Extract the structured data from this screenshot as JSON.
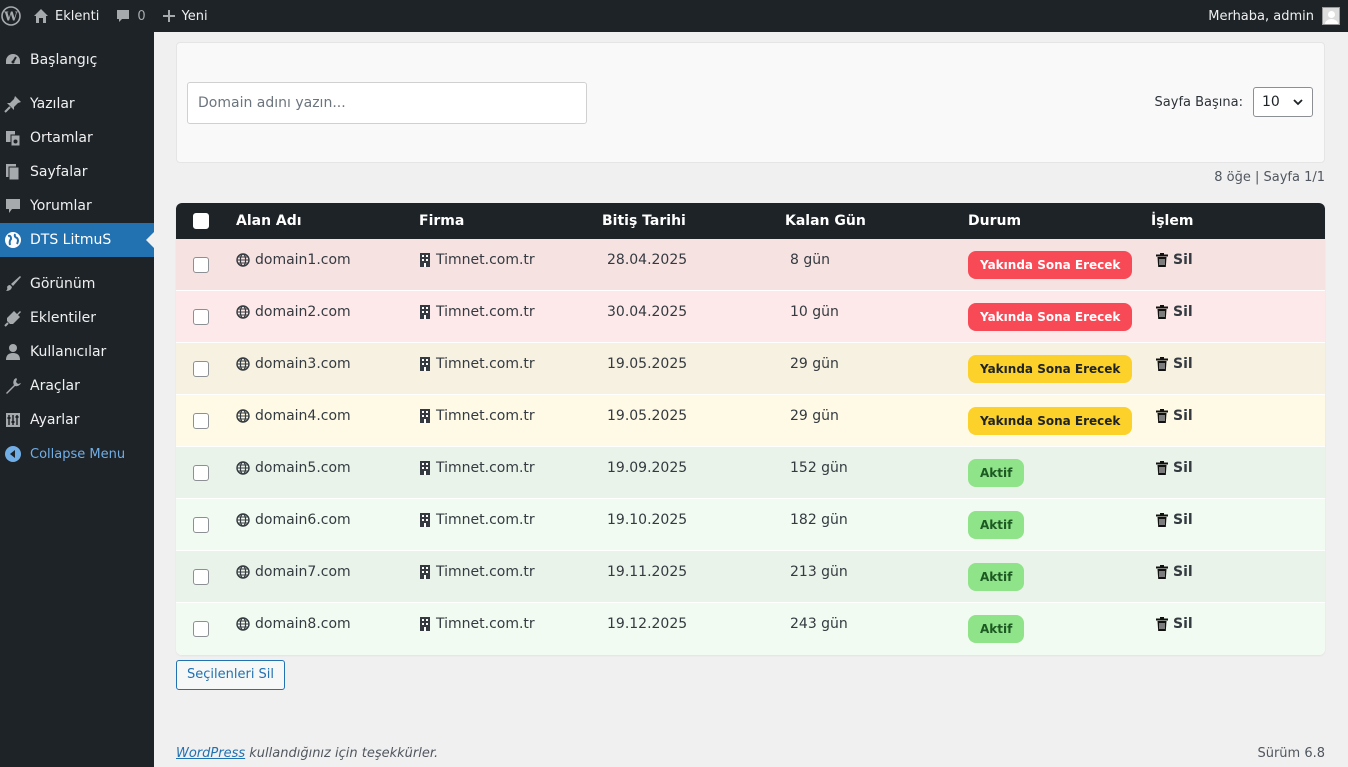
{
  "adminbar": {
    "site_name": "Eklenti",
    "comment_count": "0",
    "new_label": "Yeni",
    "greeting": "Merhaba, admin"
  },
  "sidebar": {
    "items": [
      {
        "label": "Başlangıç",
        "icon": "dashboard-icon"
      },
      {
        "label": "Yazılar",
        "icon": "pin-icon"
      },
      {
        "label": "Ortamlar",
        "icon": "media-icon"
      },
      {
        "label": "Sayfalar",
        "icon": "pages-icon"
      },
      {
        "label": "Yorumlar",
        "icon": "comment-icon"
      },
      {
        "label": "DTS LitmuS",
        "icon": "globe-icon"
      },
      {
        "label": "Görünüm",
        "icon": "brush-icon"
      },
      {
        "label": "Eklentiler",
        "icon": "plugin-icon"
      },
      {
        "label": "Kullanıcılar",
        "icon": "user-icon"
      },
      {
        "label": "Araçlar",
        "icon": "wrench-icon"
      },
      {
        "label": "Ayarlar",
        "icon": "settings-icon"
      },
      {
        "label": "Collapse Menu",
        "icon": "collapse-icon"
      }
    ]
  },
  "search": {
    "placeholder": "Domain adını yazın...",
    "per_page_label": "Sayfa Başına:",
    "per_page_value": "10"
  },
  "pagination_info": "8 öğe | Sayfa 1/1",
  "table": {
    "headers": {
      "domain": "Alan Adı",
      "firm": "Firma",
      "date": "Bitiş Tarihi",
      "days": "Kalan Gün",
      "status": "Durum",
      "action": "İşlem"
    },
    "rows": [
      {
        "domain": "domain1.com",
        "firm": "Timnet.com.tr",
        "date": "28.04.2025",
        "days": "8 gün",
        "status": "Yakında Sona Erecek",
        "action": "Sil"
      },
      {
        "domain": "domain2.com",
        "firm": "Timnet.com.tr",
        "date": "30.04.2025",
        "days": "10 gün",
        "status": "Yakında Sona Erecek",
        "action": "Sil"
      },
      {
        "domain": "domain3.com",
        "firm": "Timnet.com.tr",
        "date": "19.05.2025",
        "days": "29 gün",
        "status": "Yakında Sona Erecek",
        "action": "Sil"
      },
      {
        "domain": "domain4.com",
        "firm": "Timnet.com.tr",
        "date": "19.05.2025",
        "days": "29 gün",
        "status": "Yakında Sona Erecek",
        "action": "Sil"
      },
      {
        "domain": "domain5.com",
        "firm": "Timnet.com.tr",
        "date": "19.09.2025",
        "days": "152 gün",
        "status": "Aktif",
        "action": "Sil"
      },
      {
        "domain": "domain6.com",
        "firm": "Timnet.com.tr",
        "date": "19.10.2025",
        "days": "182 gün",
        "status": "Aktif",
        "action": "Sil"
      },
      {
        "domain": "domain7.com",
        "firm": "Timnet.com.tr",
        "date": "19.11.2025",
        "days": "213 gün",
        "status": "Aktif",
        "action": "Sil"
      },
      {
        "domain": "domain8.com",
        "firm": "Timnet.com.tr",
        "date": "19.12.2025",
        "days": "243 gün",
        "status": "Aktif",
        "action": "Sil"
      }
    ]
  },
  "bulk_delete_label": "Seçilenleri Sil",
  "footer": {
    "wordpress_link": "WordPress",
    "thanks_text": " kullandığınız için teşekkürler.",
    "version": "Sürüm 6.8"
  },
  "colors": {
    "row_backgrounds": [
      "#f7e2e2",
      "#fde9e9",
      "#f6f1e0",
      "#fefae6",
      "#eaf3ea",
      "#f2fbf1",
      "#eaf3ea",
      "#f2fbf1"
    ],
    "badge_red": "#f84a56",
    "badge_yellow": "#fcd12a",
    "badge_green": "#8fe388",
    "accent": "#2271b1"
  }
}
